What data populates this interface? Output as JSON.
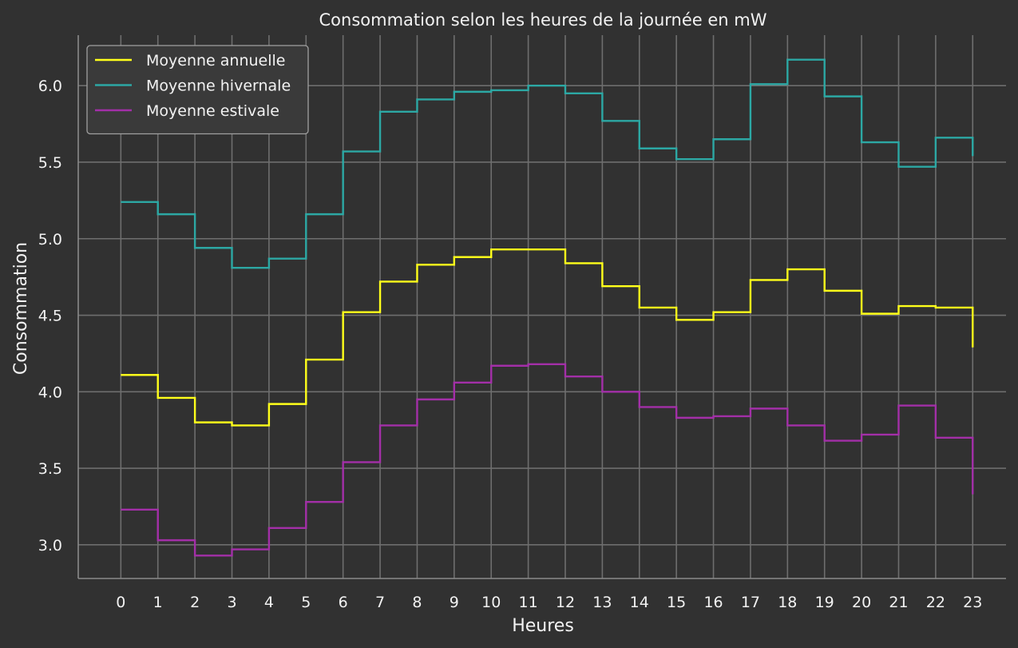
{
  "chart_data": {
    "type": "line",
    "drawstyle": "steps-post",
    "title": "Consommation selon les heures de la journée en mW",
    "xlabel": "Heures",
    "ylabel": "Consommation",
    "x": [
      0,
      1,
      2,
      3,
      4,
      5,
      6,
      7,
      8,
      9,
      10,
      11,
      12,
      13,
      14,
      15,
      16,
      17,
      18,
      19,
      20,
      21,
      22,
      23
    ],
    "xlim": [
      -1.15,
      23.9
    ],
    "ylim": [
      2.78,
      6.33
    ],
    "yticks": [
      3.0,
      3.5,
      4.0,
      4.5,
      5.0,
      5.5,
      6.0
    ],
    "ytick_labels": [
      "3.0",
      "3.5",
      "4.0",
      "4.5",
      "5.0",
      "5.5",
      "6.0"
    ],
    "grid": true,
    "legend_position": "top-left",
    "background_color": "#313131",
    "series": [
      {
        "name": "Moyenne annuelle",
        "color": "#ffff1a",
        "values": [
          4.11,
          3.96,
          3.8,
          3.78,
          3.92,
          4.21,
          4.52,
          4.72,
          4.83,
          4.88,
          4.93,
          4.93,
          4.84,
          4.69,
          4.55,
          4.47,
          4.52,
          4.73,
          4.8,
          4.66,
          4.51,
          4.56,
          4.55,
          4.29
        ]
      },
      {
        "name": "Moyenne hivernale",
        "color": "#2ca8a4",
        "values": [
          5.24,
          5.16,
          4.94,
          4.81,
          4.87,
          5.16,
          5.57,
          5.83,
          5.91,
          5.96,
          5.97,
          6.0,
          5.95,
          5.77,
          5.59,
          5.52,
          5.65,
          6.01,
          6.17,
          5.93,
          5.63,
          5.47,
          5.66,
          5.54
        ]
      },
      {
        "name": "Moyenne estivale",
        "color": "#a32fa8",
        "values": [
          3.23,
          3.03,
          2.93,
          2.97,
          3.11,
          3.28,
          3.54,
          3.78,
          3.95,
          4.06,
          4.17,
          4.18,
          4.1,
          4.0,
          3.9,
          3.83,
          3.84,
          3.89,
          3.78,
          3.68,
          3.72,
          3.91,
          3.7,
          3.33
        ]
      }
    ]
  }
}
